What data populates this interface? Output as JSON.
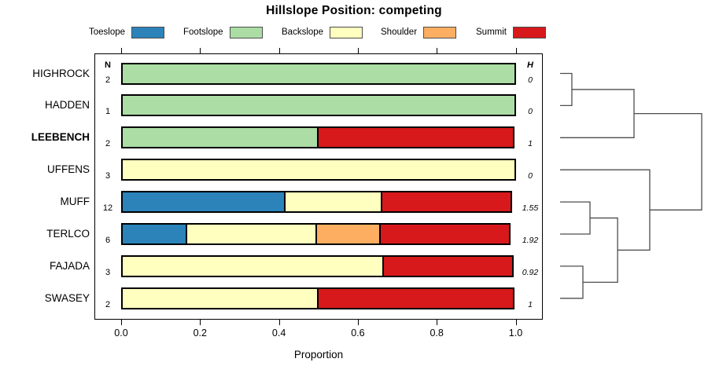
{
  "chart_data": {
    "type": "bar",
    "variant": "horizontal-stacked-proportions-with-dendrogram",
    "title": "Hillslope Position: competing",
    "xlabel": "Proportion",
    "xlim": [
      0,
      1
    ],
    "x_ticks": [
      {
        "value": 0.0,
        "label": "0.0"
      },
      {
        "value": 0.2,
        "label": "0.2"
      },
      {
        "value": 0.4,
        "label": "0.4"
      },
      {
        "value": 0.6,
        "label": "0.6"
      },
      {
        "value": 0.8,
        "label": "0.8"
      },
      {
        "value": 1.0,
        "label": "1.0"
      }
    ],
    "grid": false,
    "legend_position": "top",
    "legend": [
      {
        "label": "Toeslope",
        "color": "#2b83ba"
      },
      {
        "label": "Footslope",
        "color": "#abdda4"
      },
      {
        "label": "Backslope",
        "color": "#ffffbf"
      },
      {
        "label": "Shoulder",
        "color": "#fdae61"
      },
      {
        "label": "Summit",
        "color": "#d7191c"
      }
    ],
    "columns": {
      "n_header": "N",
      "h_header": "H"
    },
    "categories": [
      "HIGHROCK",
      "HADDEN",
      "LEEBENCH",
      "UFFENS",
      "MUFF",
      "TERLCO",
      "FAJADA",
      "SWASEY"
    ],
    "rows": [
      {
        "name": "HIGHROCK",
        "bold": false,
        "n": "2",
        "h": "0",
        "segments": [
          {
            "class": "Footslope",
            "value": 1.0
          }
        ]
      },
      {
        "name": "HADDEN",
        "bold": false,
        "n": "1",
        "h": "0",
        "segments": [
          {
            "class": "Footslope",
            "value": 1.0
          }
        ]
      },
      {
        "name": "LEEBENCH",
        "bold": true,
        "n": "2",
        "h": "1",
        "segments": [
          {
            "class": "Footslope",
            "value": 0.5
          },
          {
            "class": "Summit",
            "value": 0.5
          }
        ]
      },
      {
        "name": "UFFENS",
        "bold": false,
        "n": "3",
        "h": "0",
        "segments": [
          {
            "class": "Backslope",
            "value": 1.0
          }
        ]
      },
      {
        "name": "MUFF",
        "bold": false,
        "n": "12",
        "h": "1.55",
        "segments": [
          {
            "class": "Toeslope",
            "value": 0.4167
          },
          {
            "class": "Backslope",
            "value": 0.25
          },
          {
            "class": "Summit",
            "value": 0.3333
          }
        ]
      },
      {
        "name": "TERLCO",
        "bold": false,
        "n": "6",
        "h": "1.92",
        "segments": [
          {
            "class": "Toeslope",
            "value": 0.1667
          },
          {
            "class": "Backslope",
            "value": 0.3333
          },
          {
            "class": "Shoulder",
            "value": 0.1667
          },
          {
            "class": "Summit",
            "value": 0.3333
          }
        ]
      },
      {
        "name": "FAJADA",
        "bold": false,
        "n": "3",
        "h": "0.92",
        "segments": [
          {
            "class": "Backslope",
            "value": 0.6667
          },
          {
            "class": "Summit",
            "value": 0.3333
          }
        ]
      },
      {
        "name": "SWASEY",
        "bold": false,
        "n": "2",
        "h": "1",
        "segments": [
          {
            "class": "Backslope",
            "value": 0.5
          },
          {
            "class": "Summit",
            "value": 0.5
          }
        ]
      }
    ],
    "dendrogram": {
      "orientation": "right",
      "line_color": "#4d4d4d",
      "merges": [
        {
          "id": "m1",
          "a": "HIGHROCK",
          "b": "HADDEN",
          "height": 0.083
        },
        {
          "id": "m2",
          "a": "m1",
          "b": "LEEBENCH",
          "height": 0.522
        },
        {
          "id": "m3",
          "a": "MUFF",
          "b": "TERLCO",
          "height": 0.211
        },
        {
          "id": "m4",
          "a": "FAJADA",
          "b": "SWASEY",
          "height": 0.161
        },
        {
          "id": "m5",
          "a": "m3",
          "b": "m4",
          "height": 0.406
        },
        {
          "id": "m6",
          "a": "UFFENS",
          "b": "m5",
          "height": 0.633
        },
        {
          "id": "m7",
          "a": "m2",
          "b": "m6",
          "height": 1.0
        }
      ]
    }
  }
}
